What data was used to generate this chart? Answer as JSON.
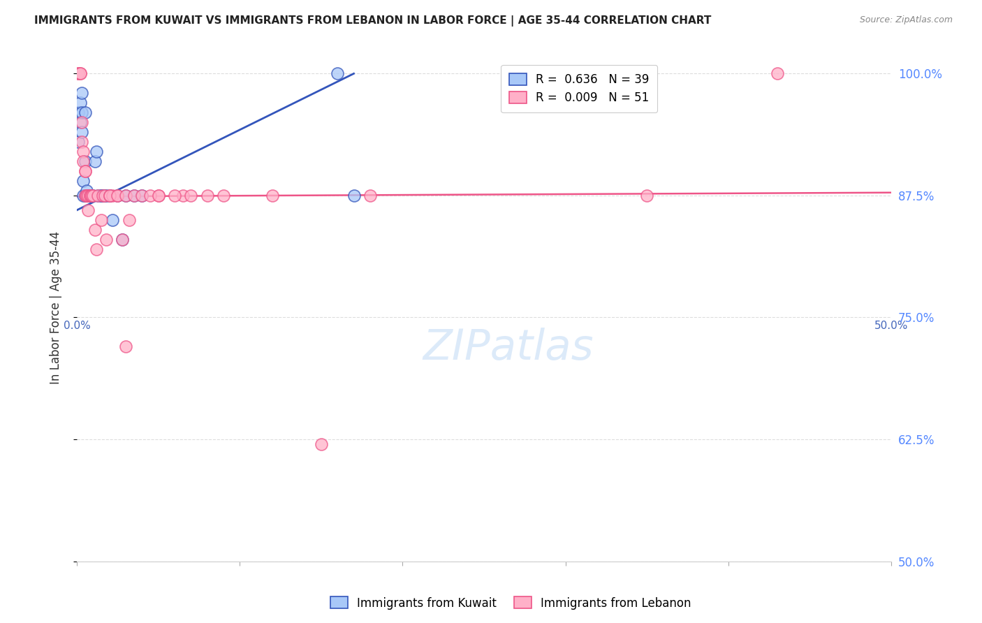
{
  "title": "IMMIGRANTS FROM KUWAIT VS IMMIGRANTS FROM LEBANON IN LABOR FORCE | AGE 35-44 CORRELATION CHART",
  "source": "Source: ZipAtlas.com",
  "xlabel": "",
  "ylabel": "In Labor Force | Age 35-44",
  "xlim": [
    0.0,
    0.5
  ],
  "ylim": [
    0.5,
    1.02
  ],
  "yticks": [
    0.5,
    0.625,
    0.75,
    0.875,
    1.0
  ],
  "ytick_labels": [
    "50.0%",
    "62.5%",
    "75.0%",
    "87.5%",
    "100.0%"
  ],
  "xtick_left_label": "0.0%",
  "xtick_right_label": "50.0%",
  "kuwait_R": 0.636,
  "kuwait_N": 39,
  "lebanon_R": 0.009,
  "lebanon_N": 51,
  "kuwait_color": "#A8C8F8",
  "lebanon_color": "#FFB0C8",
  "kuwait_line_color": "#3355BB",
  "lebanon_line_color": "#EE5588",
  "background_color": "#FFFFFF",
  "grid_color": "#DDDDDD",
  "watermark": "ZIPatlas",
  "kuwait_x": [
    0.001,
    0.001,
    0.002,
    0.002,
    0.003,
    0.003,
    0.003,
    0.004,
    0.004,
    0.005,
    0.005,
    0.005,
    0.006,
    0.006,
    0.007,
    0.007,
    0.007,
    0.008,
    0.008,
    0.009,
    0.009,
    0.01,
    0.011,
    0.012,
    0.013,
    0.015,
    0.015,
    0.016,
    0.017,
    0.018,
    0.02,
    0.022,
    0.025,
    0.028,
    0.03,
    0.035,
    0.04,
    0.16,
    0.17
  ],
  "kuwait_y": [
    0.93,
    0.96,
    0.95,
    0.97,
    0.94,
    0.96,
    0.98,
    0.875,
    0.89,
    0.96,
    0.875,
    0.91,
    0.875,
    0.88,
    0.875,
    0.875,
    0.875,
    0.875,
    0.875,
    0.875,
    0.875,
    0.875,
    0.91,
    0.92,
    0.875,
    0.875,
    0.875,
    0.875,
    0.875,
    0.875,
    0.875,
    0.85,
    0.875,
    0.83,
    0.875,
    0.875,
    0.875,
    1.0,
    0.875
  ],
  "lebanon_x": [
    0.001,
    0.001,
    0.002,
    0.002,
    0.003,
    0.003,
    0.004,
    0.004,
    0.005,
    0.005,
    0.005,
    0.006,
    0.006,
    0.007,
    0.007,
    0.008,
    0.008,
    0.009,
    0.009,
    0.01,
    0.011,
    0.012,
    0.013,
    0.015,
    0.016,
    0.017,
    0.018,
    0.02,
    0.022,
    0.025,
    0.028,
    0.03,
    0.032,
    0.05,
    0.065,
    0.07,
    0.08,
    0.09,
    0.12,
    0.15,
    0.18,
    0.02,
    0.025,
    0.03,
    0.035,
    0.04,
    0.045,
    0.05,
    0.06,
    0.35,
    0.43
  ],
  "lebanon_y": [
    1.0,
    1.0,
    1.0,
    1.0,
    0.95,
    0.93,
    0.92,
    0.91,
    0.9,
    0.9,
    0.875,
    0.875,
    0.875,
    0.875,
    0.86,
    0.875,
    0.875,
    0.875,
    0.875,
    0.875,
    0.84,
    0.82,
    0.875,
    0.85,
    0.875,
    0.875,
    0.83,
    0.875,
    0.875,
    0.875,
    0.83,
    0.72,
    0.85,
    0.875,
    0.875,
    0.875,
    0.875,
    0.875,
    0.875,
    0.62,
    0.875,
    0.875,
    0.875,
    0.875,
    0.875,
    0.875,
    0.875,
    0.875,
    0.875,
    0.875,
    1.0
  ],
  "kuwait_trend_x": [
    0.0,
    0.17
  ],
  "kuwait_trend_y": [
    0.86,
    1.0
  ],
  "lebanon_trend_x": [
    0.0,
    0.5
  ],
  "lebanon_trend_y": [
    0.874,
    0.878
  ]
}
